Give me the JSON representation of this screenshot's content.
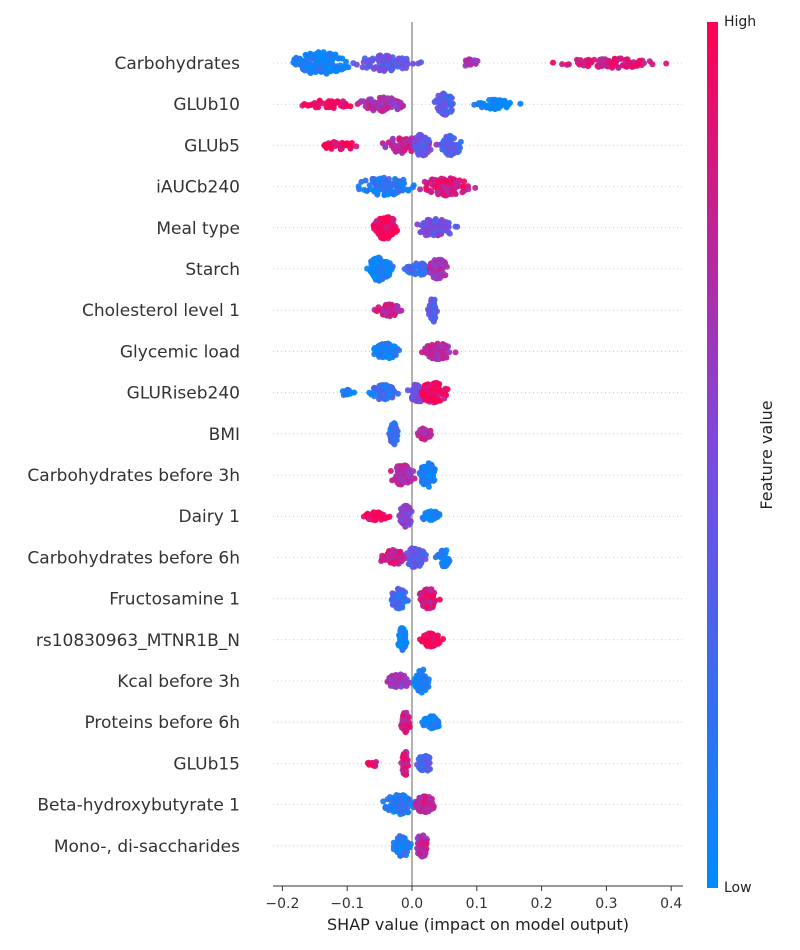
{
  "chart_data": {
    "type": "scatter",
    "subtype": "shap-beeswarm",
    "xlabel": "SHAP value (impact on model output)",
    "xlim": [
      -0.22,
      0.42
    ],
    "xticks": [
      -0.2,
      -0.1,
      0.0,
      0.1,
      0.2,
      0.3,
      0.4
    ],
    "xtick_labels": [
      "−0.2",
      "−0.1",
      "0.0",
      "0.1",
      "0.2",
      "0.3",
      "0.4"
    ],
    "colorbar": {
      "label": "Feature value",
      "high": "High",
      "low": "Low",
      "low_color": "#008bfb",
      "high_color": "#ff0052"
    },
    "features": [
      {
        "name": "Carbohydrates",
        "clusters": [
          {
            "x": -0.14,
            "spread": 0.035,
            "amp": 11,
            "n": 150,
            "value": 0.05
          },
          {
            "x": -0.04,
            "spread": 0.035,
            "amp": 8,
            "n": 80,
            "value": 0.4
          },
          {
            "x": 0.09,
            "spread": 0.01,
            "amp": 4,
            "n": 20,
            "value": 0.65
          },
          {
            "x": 0.31,
            "spread": 0.06,
            "amp": 5,
            "n": 90,
            "value": 0.85
          }
        ]
      },
      {
        "name": "GLUb10",
        "clusters": [
          {
            "x": -0.13,
            "spread": 0.035,
            "amp": 4,
            "n": 40,
            "value": 0.95
          },
          {
            "x": -0.045,
            "spread": 0.03,
            "amp": 7,
            "n": 80,
            "value": 0.7
          },
          {
            "x": 0.05,
            "spread": 0.012,
            "amp": 11,
            "n": 80,
            "value": 0.35
          },
          {
            "x": 0.13,
            "spread": 0.025,
            "amp": 5,
            "n": 50,
            "value": 0.05
          }
        ]
      },
      {
        "name": "GLUb5",
        "clusters": [
          {
            "x": -0.11,
            "spread": 0.025,
            "amp": 4,
            "n": 35,
            "value": 0.95
          },
          {
            "x": -0.01,
            "spread": 0.03,
            "amp": 8,
            "n": 80,
            "value": 0.75
          },
          {
            "x": 0.015,
            "spread": 0.012,
            "amp": 11,
            "n": 70,
            "value": 0.4
          },
          {
            "x": 0.06,
            "spread": 0.012,
            "amp": 10,
            "n": 60,
            "value": 0.3
          }
        ]
      },
      {
        "name": "iAUCb240",
        "clusters": [
          {
            "x": -0.04,
            "spread": 0.035,
            "amp": 9,
            "n": 90,
            "value": 0.15
          },
          {
            "x": 0.05,
            "spread": 0.03,
            "amp": 9,
            "n": 100,
            "value": 0.85
          }
        ]
      },
      {
        "name": "Meal type",
        "clusters": [
          {
            "x": -0.04,
            "spread": 0.015,
            "amp": 11,
            "n": 110,
            "value": 0.95
          },
          {
            "x": 0.035,
            "spread": 0.025,
            "amp": 9,
            "n": 100,
            "value": 0.45
          }
        ]
      },
      {
        "name": "Starch",
        "clusters": [
          {
            "x": -0.05,
            "spread": 0.015,
            "amp": 12,
            "n": 110,
            "value": 0.05
          },
          {
            "x": 0.01,
            "spread": 0.015,
            "amp": 6,
            "n": 45,
            "value": 0.25
          },
          {
            "x": 0.04,
            "spread": 0.012,
            "amp": 10,
            "n": 70,
            "value": 0.7
          }
        ]
      },
      {
        "name": "Cholesterol level 1",
        "clusters": [
          {
            "x": -0.035,
            "spread": 0.015,
            "amp": 6,
            "n": 60,
            "value": 0.8
          },
          {
            "x": 0.032,
            "spread": 0.006,
            "amp": 12,
            "n": 60,
            "value": 0.35
          }
        ]
      },
      {
        "name": "Glycemic load",
        "clusters": [
          {
            "x": -0.04,
            "spread": 0.015,
            "amp": 8,
            "n": 90,
            "value": 0.1
          },
          {
            "x": 0.04,
            "spread": 0.018,
            "amp": 8,
            "n": 90,
            "value": 0.7
          }
        ]
      },
      {
        "name": "GLURiseb240",
        "clusters": [
          {
            "x": -0.1,
            "spread": 0.01,
            "amp": 3,
            "n": 15,
            "value": 0.05
          },
          {
            "x": -0.045,
            "spread": 0.015,
            "amp": 8,
            "n": 60,
            "value": 0.2
          },
          {
            "x": 0.01,
            "spread": 0.012,
            "amp": 9,
            "n": 60,
            "value": 0.45
          },
          {
            "x": 0.035,
            "spread": 0.018,
            "amp": 10,
            "n": 80,
            "value": 0.9
          }
        ]
      },
      {
        "name": "BMI",
        "clusters": [
          {
            "x": -0.028,
            "spread": 0.005,
            "amp": 11,
            "n": 70,
            "value": 0.2
          },
          {
            "x": 0.02,
            "spread": 0.008,
            "amp": 6,
            "n": 40,
            "value": 0.75
          }
        ]
      },
      {
        "name": "Carbohydrates before 3h",
        "clusters": [
          {
            "x": -0.015,
            "spread": 0.015,
            "amp": 10,
            "n": 80,
            "value": 0.7
          },
          {
            "x": 0.025,
            "spread": 0.01,
            "amp": 12,
            "n": 80,
            "value": 0.05
          }
        ]
      },
      {
        "name": "Dairy 1",
        "clusters": [
          {
            "x": -0.055,
            "spread": 0.015,
            "amp": 4,
            "n": 50,
            "value": 0.95
          },
          {
            "x": -0.01,
            "spread": 0.008,
            "amp": 11,
            "n": 80,
            "value": 0.55
          },
          {
            "x": 0.03,
            "spread": 0.012,
            "amp": 5,
            "n": 40,
            "value": 0.05
          }
        ]
      },
      {
        "name": "Carbohydrates before 6h",
        "clusters": [
          {
            "x": -0.03,
            "spread": 0.015,
            "amp": 8,
            "n": 70,
            "value": 0.85
          },
          {
            "x": 0.005,
            "spread": 0.012,
            "amp": 10,
            "n": 60,
            "value": 0.4
          },
          {
            "x": 0.05,
            "spread": 0.008,
            "amp": 9,
            "n": 40,
            "value": 0.05
          }
        ]
      },
      {
        "name": "Fructosamine 1",
        "clusters": [
          {
            "x": -0.02,
            "spread": 0.01,
            "amp": 10,
            "n": 70,
            "value": 0.25
          },
          {
            "x": 0.025,
            "spread": 0.012,
            "amp": 10,
            "n": 70,
            "value": 0.85
          }
        ]
      },
      {
        "name": "rs10830963_MTNR1B_N",
        "clusters": [
          {
            "x": -0.015,
            "spread": 0.005,
            "amp": 12,
            "n": 90,
            "value": 0.05
          },
          {
            "x": 0.03,
            "spread": 0.012,
            "amp": 7,
            "n": 70,
            "value": 0.97
          }
        ]
      },
      {
        "name": "Kcal before 3h",
        "clusters": [
          {
            "x": -0.02,
            "spread": 0.015,
            "amp": 7,
            "n": 60,
            "value": 0.6
          },
          {
            "x": 0.015,
            "spread": 0.01,
            "amp": 12,
            "n": 60,
            "value": 0.1
          }
        ]
      },
      {
        "name": "Proteins before 6h",
        "clusters": [
          {
            "x": -0.01,
            "spread": 0.006,
            "amp": 10,
            "n": 60,
            "value": 0.8
          },
          {
            "x": 0.03,
            "spread": 0.012,
            "amp": 6,
            "n": 50,
            "value": 0.1
          }
        ]
      },
      {
        "name": "GLUb15",
        "clusters": [
          {
            "x": -0.06,
            "spread": 0.006,
            "amp": 3,
            "n": 12,
            "value": 0.95
          },
          {
            "x": -0.01,
            "spread": 0.005,
            "amp": 12,
            "n": 60,
            "value": 0.8
          },
          {
            "x": 0.02,
            "spread": 0.01,
            "amp": 8,
            "n": 60,
            "value": 0.3
          }
        ]
      },
      {
        "name": "Beta-hydroxybutyrate 1",
        "clusters": [
          {
            "x": -0.02,
            "spread": 0.02,
            "amp": 10,
            "n": 80,
            "value": 0.15
          },
          {
            "x": 0.02,
            "spread": 0.012,
            "amp": 9,
            "n": 60,
            "value": 0.8
          }
        ]
      },
      {
        "name": "Mono-, di-saccharides",
        "clusters": [
          {
            "x": -0.015,
            "spread": 0.01,
            "amp": 11,
            "n": 70,
            "value": 0.15
          },
          {
            "x": 0.015,
            "spread": 0.008,
            "amp": 11,
            "n": 70,
            "value": 0.7
          }
        ]
      }
    ]
  }
}
